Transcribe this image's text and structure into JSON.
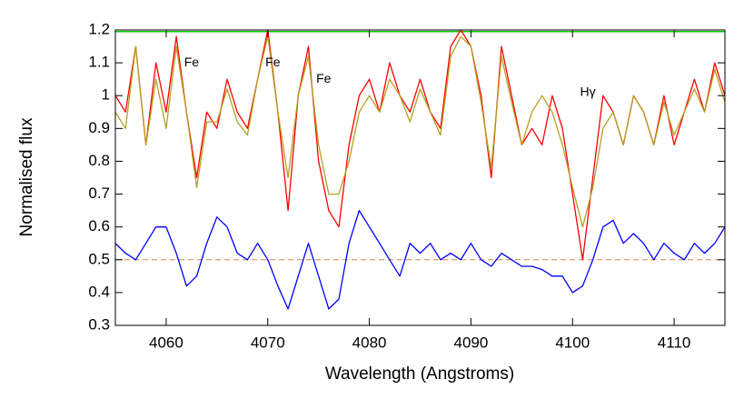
{
  "chart_data": {
    "type": "line",
    "xlabel": "Wavelength (Angstroms)",
    "ylabel": "Normalised flux",
    "x": [
      4055,
      4056,
      4057,
      4058,
      4059,
      4060,
      4061,
      4062,
      4063,
      4064,
      4065,
      4066,
      4067,
      4068,
      4069,
      4070,
      4071,
      4072,
      4073,
      4074,
      4075,
      4076,
      4077,
      4078,
      4079,
      4080,
      4081,
      4082,
      4083,
      4084,
      4085,
      4086,
      4087,
      4088,
      4089,
      4090,
      4091,
      4092,
      4093,
      4094,
      4095,
      4096,
      4097,
      4098,
      4099,
      4100,
      4101,
      4102,
      4103,
      4104,
      4105,
      4106,
      4107,
      4108,
      4109,
      4110,
      4111,
      4112,
      4113,
      4114,
      4115
    ],
    "series": [
      {
        "color": "#ff0000",
        "values": [
          1.0,
          0.95,
          1.15,
          0.85,
          1.1,
          0.95,
          1.18,
          0.95,
          0.75,
          0.95,
          0.9,
          1.05,
          0.95,
          0.9,
          1.05,
          1.2,
          0.95,
          0.65,
          1.0,
          1.15,
          0.8,
          0.65,
          0.6,
          0.85,
          1.0,
          1.05,
          0.95,
          1.1,
          1.0,
          0.95,
          1.05,
          0.95,
          0.9,
          1.15,
          1.2,
          1.15,
          1.0,
          0.75,
          1.15,
          1.0,
          0.85,
          0.9,
          0.85,
          1.0,
          0.9,
          0.7,
          0.5,
          0.75,
          1.0,
          0.95,
          0.85,
          1.0,
          0.95,
          0.85,
          1.0,
          0.85,
          0.95,
          1.05,
          0.95,
          1.1,
          1.0
        ]
      },
      {
        "color": "#b4a020",
        "values": [
          0.95,
          0.9,
          1.15,
          0.85,
          1.05,
          0.9,
          1.15,
          0.95,
          0.72,
          0.92,
          0.92,
          1.02,
          0.92,
          0.88,
          1.05,
          1.18,
          0.95,
          0.75,
          1.0,
          1.12,
          0.85,
          0.7,
          0.7,
          0.8,
          0.95,
          1.0,
          0.95,
          1.05,
          1.0,
          0.92,
          1.02,
          0.95,
          0.88,
          1.12,
          1.18,
          1.15,
          0.98,
          0.78,
          1.12,
          0.98,
          0.85,
          0.95,
          1.0,
          0.95,
          0.85,
          0.72,
          0.6,
          0.72,
          0.9,
          0.95,
          0.85,
          1.0,
          0.95,
          0.85,
          0.98,
          0.88,
          0.95,
          1.02,
          0.95,
          1.08,
          0.98
        ]
      },
      {
        "color": "#0000ff",
        "values": [
          0.55,
          0.52,
          0.5,
          0.55,
          0.6,
          0.6,
          0.52,
          0.42,
          0.45,
          0.55,
          0.63,
          0.6,
          0.52,
          0.5,
          0.55,
          0.5,
          0.42,
          0.35,
          0.45,
          0.55,
          0.45,
          0.35,
          0.38,
          0.55,
          0.65,
          0.6,
          0.55,
          0.5,
          0.45,
          0.55,
          0.52,
          0.55,
          0.5,
          0.52,
          0.5,
          0.55,
          0.5,
          0.48,
          0.52,
          0.5,
          0.48,
          0.48,
          0.47,
          0.45,
          0.45,
          0.4,
          0.42,
          0.5,
          0.6,
          0.62,
          0.55,
          0.58,
          0.55,
          0.5,
          0.55,
          0.52,
          0.5,
          0.55,
          0.52,
          0.55,
          0.6
        ]
      }
    ],
    "hlines": [
      {
        "y": 1.195,
        "color": "#00cc00"
      },
      {
        "y": 0.5,
        "color": "#e08040",
        "dashed": true
      }
    ],
    "annotations": [
      {
        "text": "Fe",
        "x": 4062.5,
        "y": 1.1
      },
      {
        "text": "Fe",
        "x": 4070.5,
        "y": 1.1
      },
      {
        "text": "Fe",
        "x": 4075.5,
        "y": 1.05
      },
      {
        "text": "Hγ",
        "x": 4101.5,
        "y": 1.01
      }
    ],
    "xlim": [
      4055,
      4115
    ],
    "xticks": [
      4060,
      4070,
      4080,
      4090,
      4100,
      4110
    ],
    "ylim": [
      0.3,
      1.2
    ],
    "yticks": [
      0.3,
      0.4,
      0.5,
      0.6,
      0.7,
      0.8,
      0.9,
      1,
      1.1,
      1.2
    ]
  }
}
